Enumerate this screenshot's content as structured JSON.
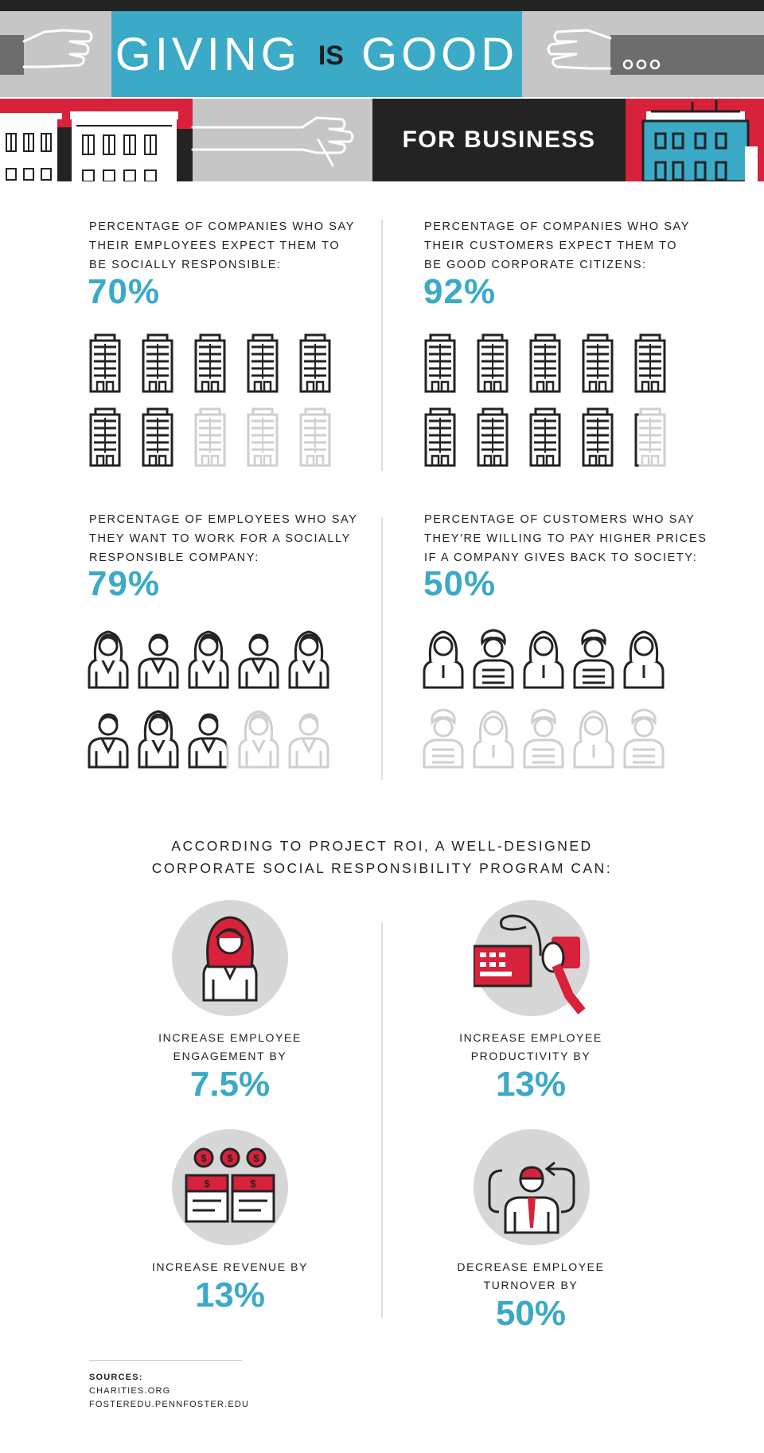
{
  "header": {
    "title_left": "GIVING",
    "title_mid": "IS",
    "title_right": "GOOD",
    "subtitle": "FOR BUSINESS"
  },
  "stats": [
    {
      "question_lines": [
        "PERCENTAGE OF COMPANIES WHO SAY",
        "THEIR EMPLOYEES EXPECT THEM TO",
        "BE SOCIALLY RESPONSIBLE:"
      ],
      "percent_label": "70%",
      "filled_fraction": 0.7,
      "icon": "building-icon"
    },
    {
      "question_lines": [
        "PERCENTAGE OF COMPANIES WHO SAY",
        "THEIR CUSTOMERS EXPECT THEM TO",
        "BE GOOD CORPORATE CITIZENS:"
      ],
      "percent_label": "92%",
      "filled_fraction": 0.92,
      "icon": "building-icon"
    },
    {
      "question_lines": [
        "PERCENTAGE OF EMPLOYEES WHO SAY",
        "THEY WANT TO WORK FOR A SOCIALLY",
        "RESPONSIBLE COMPANY:"
      ],
      "percent_label": "79%",
      "filled_fraction": 0.79,
      "icon": "employee-icon"
    },
    {
      "question_lines": [
        "PERCENTAGE OF CUSTOMERS WHO SAY",
        "THEY'RE WILLING TO PAY HIGHER PRICES",
        "IF A COMPANY GIVES BACK TO SOCIETY:"
      ],
      "percent_label": "50%",
      "filled_fraction": 0.5,
      "icon": "customer-icon"
    }
  ],
  "roi": {
    "heading_lines": [
      "ACCORDING TO PROJECT ROI, A WELL-DESIGNED",
      "CORPORATE SOCIAL RESPONSIBILITY PROGRAM CAN:"
    ],
    "items": [
      {
        "caption_lines": [
          "INCREASE EMPLOYEE",
          "ENGAGEMENT BY"
        ],
        "value": "7.5%",
        "icon": "engaged-employee-icon"
      },
      {
        "caption_lines": [
          "INCREASE EMPLOYEE",
          "PRODUCTIVITY BY"
        ],
        "value": "13%",
        "icon": "keyboard-mouse-icon"
      },
      {
        "caption_lines": [
          "INCREASE REVENUE BY"
        ],
        "value": "13%",
        "icon": "money-stacks-icon"
      },
      {
        "caption_lines": [
          "DECREASE EMPLOYEE",
          "TURNOVER BY"
        ],
        "value": "50%",
        "icon": "employee-turnover-icon"
      }
    ]
  },
  "sources": {
    "title": "SOURCES:",
    "items": [
      "CHARITIES.ORG",
      "FOSTEREDU.PENNFOSTER.EDU"
    ]
  },
  "colors": {
    "accent": "#3aaac7",
    "red": "#d8213a",
    "dark": "#232323",
    "gray": "#c6c6c6",
    "light_gray": "#d7d7d7",
    "faded": "#cfcfcf"
  }
}
